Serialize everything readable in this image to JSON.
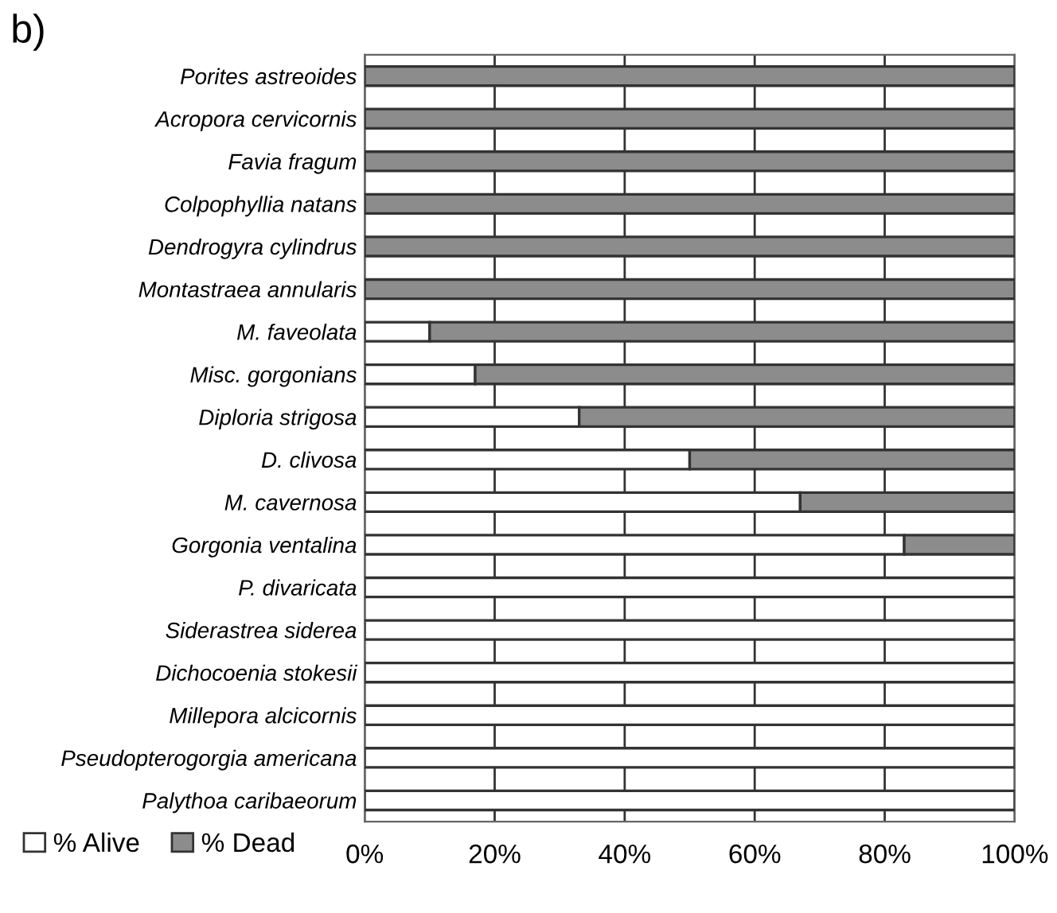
{
  "chart_data": {
    "type": "bar",
    "title": "b)",
    "orientation": "horizontal",
    "stacked": true,
    "categories": [
      "Porites astreoides",
      "Acropora cervicornis",
      "Favia fragum",
      "Colpophyllia natans",
      "Dendrogyra cylindrus",
      "Montastraea annularis",
      "M. faveolata",
      "Misc. gorgonians",
      "Diploria strigosa",
      "D. clivosa",
      "M. cavernosa",
      "Gorgonia ventalina",
      "P. divaricata",
      "Siderastrea siderea",
      "Dichocoenia stokesii",
      "Millepora alcicornis",
      "Pseudopterogorgia americana",
      "Palythoa caribaeorum"
    ],
    "series": [
      {
        "name": "% Alive",
        "color": "#ffffff",
        "values": [
          0,
          0,
          0,
          0,
          0,
          0,
          10,
          17,
          33,
          50,
          67,
          83,
          100,
          100,
          100,
          100,
          100,
          100
        ]
      },
      {
        "name": "% Dead",
        "color": "#8c8c8c",
        "values": [
          100,
          100,
          100,
          100,
          100,
          100,
          90,
          83,
          67,
          50,
          33,
          17,
          0,
          0,
          0,
          0,
          0,
          0
        ]
      }
    ],
    "xlim": [
      0,
      100
    ],
    "xticks": [
      {
        "value": 0,
        "label": "0%"
      },
      {
        "value": 20,
        "label": "20%"
      },
      {
        "value": 40,
        "label": "40%"
      },
      {
        "value": 60,
        "label": "60%"
      },
      {
        "value": 80,
        "label": "80%"
      },
      {
        "value": 100,
        "label": "100%"
      }
    ],
    "grid": "x",
    "legend": "bottom left"
  }
}
